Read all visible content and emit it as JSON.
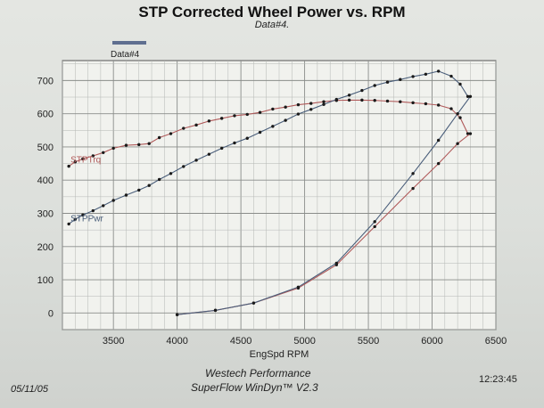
{
  "header": {
    "title": "STP Corrected Wheel Power vs. RPM",
    "subtitle": "Data#4."
  },
  "footer": {
    "date": "05/11/05",
    "company": "Westech Performance",
    "software": "SuperFlow WinDyn™ V2.3",
    "time": "12:23:45"
  },
  "chart_data": {
    "type": "line",
    "title": "STP Corrected Wheel Power vs. RPM",
    "subtitle": "Data#4.",
    "xlabel": "EngSpd  RPM",
    "ylabel": "",
    "xlim": [
      3100,
      6500
    ],
    "ylim": [
      -50,
      760
    ],
    "xticks": [
      3500,
      4000,
      4500,
      5000,
      5500,
      6000,
      6500
    ],
    "yticks": [
      0,
      100,
      200,
      300,
      400,
      500,
      600,
      700
    ],
    "grid": true,
    "legend": {
      "placement": "top-left",
      "entries": [
        "Data#4"
      ]
    },
    "colors": {
      "trq": "#b05a5a",
      "pwr": "#4a5e7a",
      "legend_swatch": "#5f6f90"
    },
    "series": [
      {
        "name": "STPTrq",
        "color": "#b05a5a",
        "x": [
          3150,
          3200,
          3260,
          3340,
          3420,
          3500,
          3600,
          3700,
          3780,
          3860,
          3950,
          4050,
          4150,
          4250,
          4350,
          4450,
          4550,
          4650,
          4750,
          4850,
          4950,
          5050,
          5150,
          5250,
          5350,
          5450,
          5550,
          5650,
          5750,
          5850,
          5950,
          6050,
          6150,
          6220,
          6280
        ],
        "y": [
          442,
          455,
          464,
          473,
          483,
          496,
          505,
          507,
          510,
          528,
          540,
          556,
          566,
          578,
          586,
          594,
          598,
          604,
          614,
          620,
          627,
          631,
          636,
          640,
          641,
          641,
          640,
          638,
          636,
          633,
          630,
          626,
          615,
          588,
          540
        ]
      },
      {
        "name": "STPPwr",
        "color": "#4a5e7a",
        "x": [
          3150,
          3200,
          3260,
          3340,
          3420,
          3500,
          3600,
          3700,
          3780,
          3860,
          3950,
          4050,
          4150,
          4250,
          4350,
          4450,
          4550,
          4650,
          4750,
          4850,
          4950,
          5050,
          5150,
          5250,
          5350,
          5450,
          5550,
          5650,
          5750,
          5850,
          5950,
          6050,
          6150,
          6220,
          6280
        ],
        "y": [
          268,
          282,
          295,
          308,
          323,
          339,
          355,
          370,
          384,
          402,
          420,
          441,
          460,
          478,
          496,
          512,
          526,
          544,
          562,
          580,
          599,
          613,
          628,
          643,
          656,
          670,
          685,
          695,
          703,
          712,
          719,
          728,
          713,
          689,
          652
        ]
      },
      {
        "name": "",
        "color": "#b05a5a",
        "x": [
          4000,
          4300,
          4600,
          4950,
          5250,
          5550,
          5850,
          6050,
          6200,
          6300
        ],
        "y": [
          -5,
          8,
          30,
          75,
          145,
          260,
          375,
          450,
          510,
          540
        ]
      },
      {
        "name": "",
        "color": "#4a5e7a",
        "x": [
          4000,
          4300,
          4600,
          4950,
          5250,
          5550,
          5850,
          6050,
          6200,
          6300
        ],
        "y": [
          -5,
          8,
          30,
          78,
          150,
          275,
          420,
          520,
          600,
          652
        ]
      }
    ]
  }
}
